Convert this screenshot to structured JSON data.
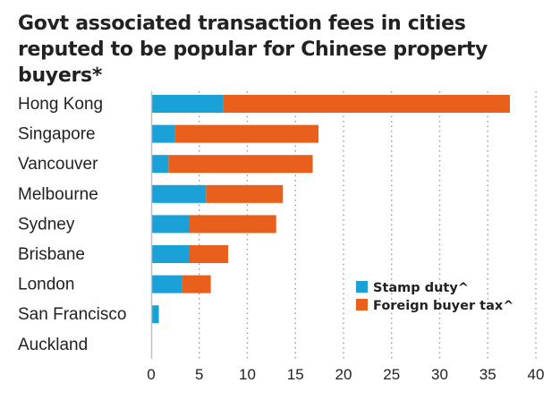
{
  "chart_data": {
    "type": "bar",
    "orientation": "horizontal",
    "stacked": true,
    "title": "Govt associated transaction fees in cities reputed to be popular for Chinese property buyers*",
    "categories": [
      "Hong Kong",
      "Singapore",
      "Vancouver",
      "Melbourne",
      "Sydney",
      "Brisbane",
      "London",
      "San Francisco",
      "Auckland"
    ],
    "series": [
      {
        "name": "Stamp duty^",
        "color": "#1aa1d8",
        "values": [
          7.5,
          2.5,
          1.8,
          5.7,
          4.0,
          4.0,
          3.2,
          0.8,
          0
        ]
      },
      {
        "name": "Foreign buyer tax^",
        "color": "#e8601c",
        "values": [
          29.8,
          14.9,
          15.0,
          8.0,
          9.0,
          4.0,
          3.0,
          0,
          0
        ]
      }
    ],
    "xlim": [
      0,
      40
    ],
    "xticks": [
      0,
      5,
      10,
      15,
      20,
      25,
      30,
      35,
      40
    ],
    "xlabel": "",
    "ylabel": "",
    "grid": "vertical dotted",
    "legend_position": "bottom-right"
  }
}
